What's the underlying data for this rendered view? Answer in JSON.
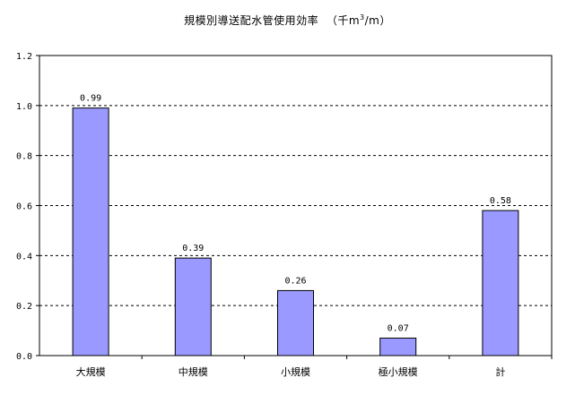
{
  "chart_data": {
    "type": "bar",
    "title": "規模別導送配水管使用効率",
    "unit_prefix": "（千m",
    "unit_sup": "3",
    "unit_suffix": "/m）",
    "categories": [
      "大規模",
      "中規模",
      "小規模",
      "極小規模",
      "計"
    ],
    "values": [
      0.99,
      0.39,
      0.26,
      0.07,
      0.58
    ],
    "data_labels": [
      "0.99",
      "0.39",
      "0.26",
      "0.07",
      "0.58"
    ],
    "ylim": [
      0,
      1.2
    ],
    "yticks": [
      0.0,
      0.2,
      0.4,
      0.6,
      0.8,
      1.0,
      1.2
    ],
    "ytick_labels": [
      "0.0",
      "0.2",
      "0.4",
      "0.6",
      "0.8",
      "1.0",
      "1.2"
    ],
    "xlabel": "",
    "ylabel": "",
    "grid": "horizontal dashed",
    "legend": "none",
    "bar_color": "#9999ff",
    "bar_stroke": "#000000"
  }
}
